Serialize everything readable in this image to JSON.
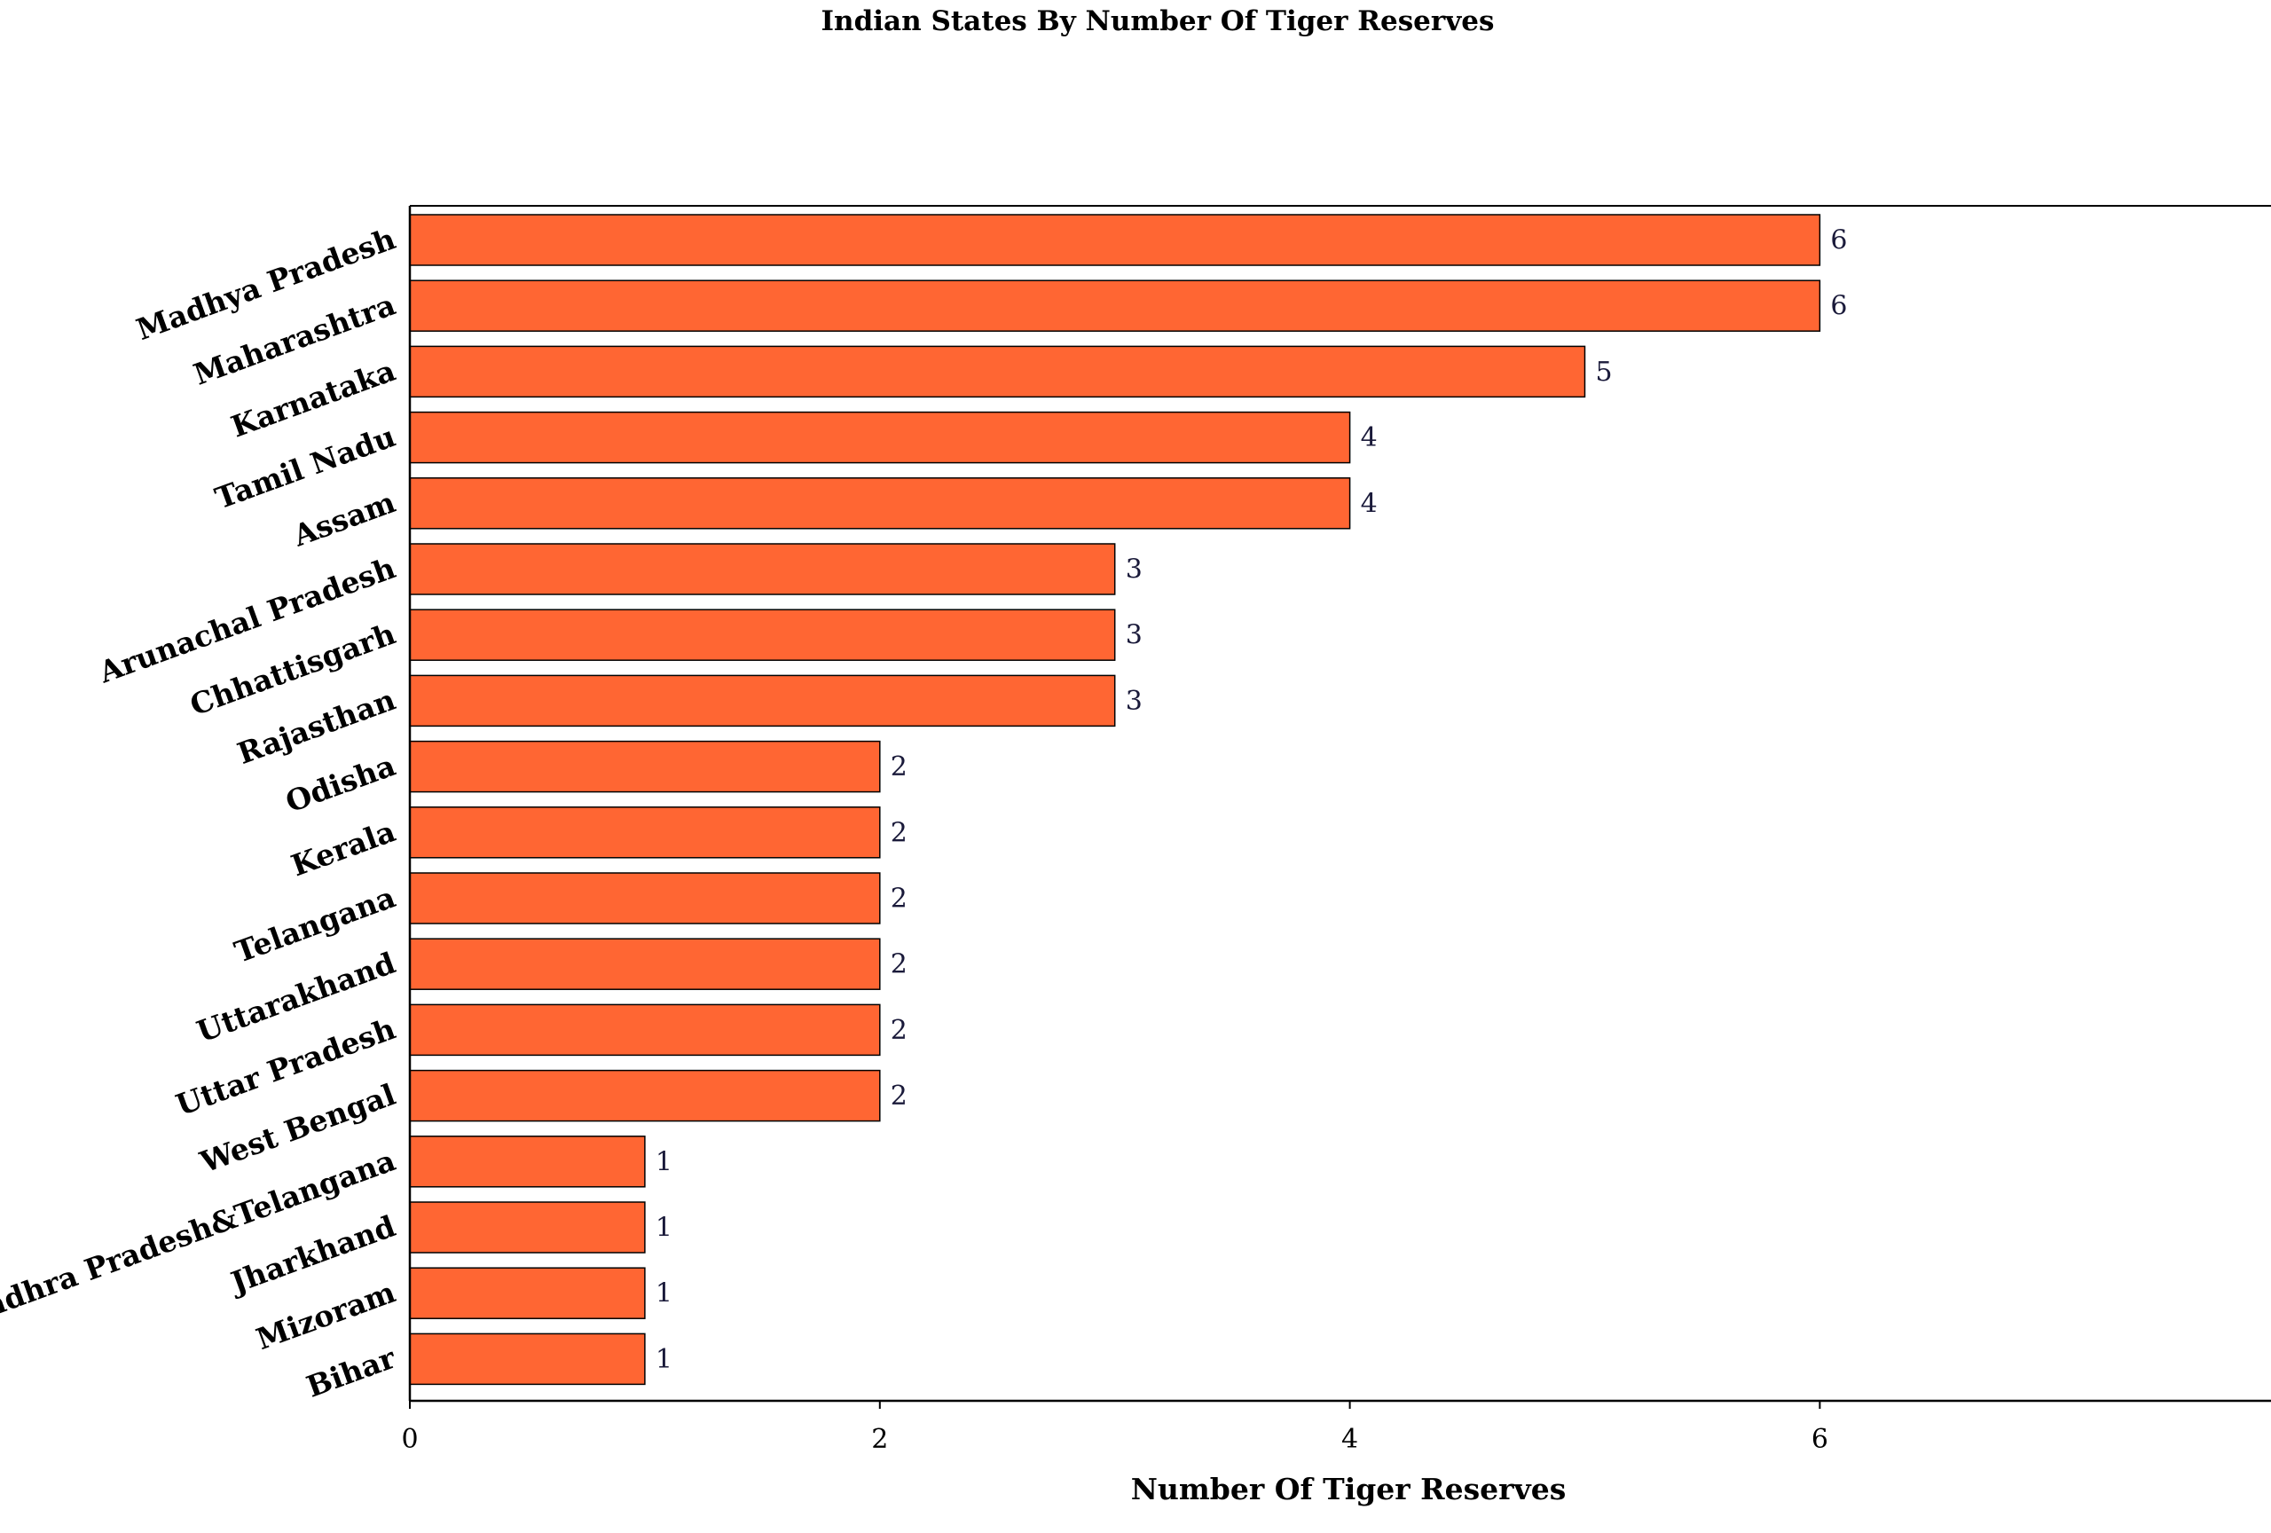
{
  "chart_data": {
    "type": "bar",
    "orientation": "horizontal",
    "title": "Indian States By Number Of Tiger Reserves",
    "xlabel": "Number Of Tiger Reserves",
    "ylabel": "",
    "xlim": [
      0,
      7.92
    ],
    "xticks": [
      0,
      2,
      4,
      6
    ],
    "bar_color": "#ff6633",
    "bar_edge_color": "#000000",
    "grid": false,
    "legend": "none",
    "categories": [
      "Madhya Pradesh",
      "Maharashtra",
      "Karnataka",
      "Tamil Nadu",
      "Assam",
      "Arunachal Pradesh",
      "Chhattisgarh",
      "Rajasthan",
      "Odisha",
      "Kerala",
      "Telangana",
      "Uttarakhand",
      "Uttar Pradesh",
      "West Bengal",
      "Andhra Pradesh&Telangana",
      "Jharkhand",
      "Mizoram",
      "Bihar"
    ],
    "values": [
      6,
      6,
      5,
      4,
      4,
      3,
      3,
      3,
      2,
      2,
      2,
      2,
      2,
      2,
      1,
      1,
      1,
      1
    ]
  }
}
